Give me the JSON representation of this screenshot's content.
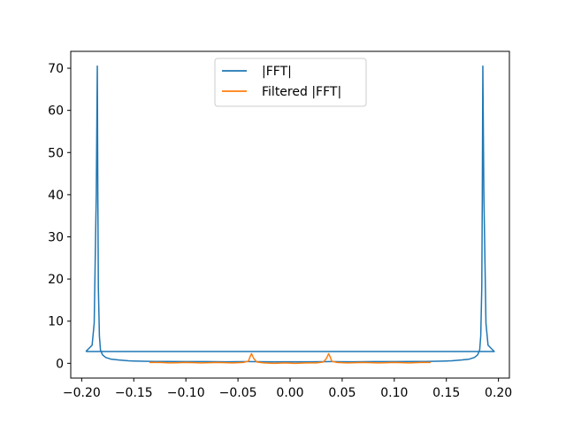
{
  "chart_data": {
    "type": "line",
    "title": "",
    "xlabel": "",
    "ylabel": "",
    "xlim": [
      -0.2105,
      0.2105
    ],
    "ylim": [
      -3.5,
      74
    ],
    "x_ticks": [
      -0.2,
      -0.15,
      -0.1,
      -0.05,
      0.0,
      0.05,
      0.1,
      0.15,
      0.2
    ],
    "x_tick_labels": [
      "−0.20",
      "−0.15",
      "−0.10",
      "−0.05",
      "0.00",
      "0.05",
      "0.10",
      "0.15",
      "0.20"
    ],
    "y_ticks": [
      0,
      10,
      20,
      30,
      40,
      50,
      60,
      70
    ],
    "y_tick_labels": [
      "0",
      "10",
      "20",
      "30",
      "40",
      "50",
      "60",
      "70"
    ],
    "grid": false,
    "legend": {
      "placement": "upper-center",
      "entries": [
        "|FFT|",
        "Filtered |FFT|"
      ]
    },
    "series": [
      {
        "name": "|FFT|",
        "color": "#1f77b4",
        "x": [
          -0.196,
          -0.19,
          -0.188,
          -0.186,
          -0.185,
          -0.1845,
          -0.184,
          -0.183,
          -0.182,
          -0.18,
          -0.177,
          -0.172,
          -0.165,
          -0.155,
          -0.15,
          -0.14,
          -0.13,
          -0.12,
          -0.1,
          -0.08,
          -0.06,
          -0.04,
          -0.02,
          0.0,
          0.02,
          0.04,
          0.06,
          0.08,
          0.1,
          0.12,
          0.13,
          0.14,
          0.15,
          0.155,
          0.165,
          0.172,
          0.177,
          0.18,
          0.182,
          0.183,
          0.184,
          0.1845,
          0.185,
          0.186,
          0.188,
          0.19,
          0.196,
          0.196,
          -0.196
        ],
        "y": [
          2.8,
          4.3,
          9.5,
          40,
          70.5,
          40,
          18,
          6.5,
          3.2,
          2.0,
          1.4,
          1.0,
          0.8,
          0.6,
          0.55,
          0.5,
          0.45,
          0.45,
          0.4,
          0.4,
          0.35,
          0.4,
          0.35,
          0.35,
          0.35,
          0.4,
          0.35,
          0.4,
          0.4,
          0.45,
          0.45,
          0.5,
          0.55,
          0.6,
          0.8,
          1.0,
          1.4,
          2.0,
          3.2,
          6.5,
          18,
          40,
          70.5,
          40,
          9.5,
          4.3,
          2.8,
          2.8,
          2.8
        ]
      },
      {
        "name": "Filtered |FFT|",
        "color": "#ff7f0e",
        "x": [
          -0.135,
          -0.125,
          -0.115,
          -0.1,
          -0.085,
          -0.07,
          -0.055,
          -0.045,
          -0.04,
          -0.0385,
          -0.037,
          -0.035,
          -0.032,
          -0.025,
          -0.015,
          -0.005,
          0.005,
          0.015,
          0.025,
          0.032,
          0.035,
          0.037,
          0.0385,
          0.04,
          0.045,
          0.055,
          0.07,
          0.085,
          0.1,
          0.115,
          0.125,
          0.135
        ],
        "y": [
          0.2,
          0.2,
          0.1,
          0.2,
          0.1,
          0.2,
          0.1,
          0.2,
          0.5,
          1.5,
          2.3,
          1.2,
          0.3,
          0.1,
          0.0,
          0.1,
          0.0,
          0.1,
          0.1,
          0.3,
          1.2,
          2.3,
          1.5,
          0.5,
          0.2,
          0.1,
          0.2,
          0.1,
          0.2,
          0.1,
          0.2,
          0.2
        ]
      }
    ]
  }
}
